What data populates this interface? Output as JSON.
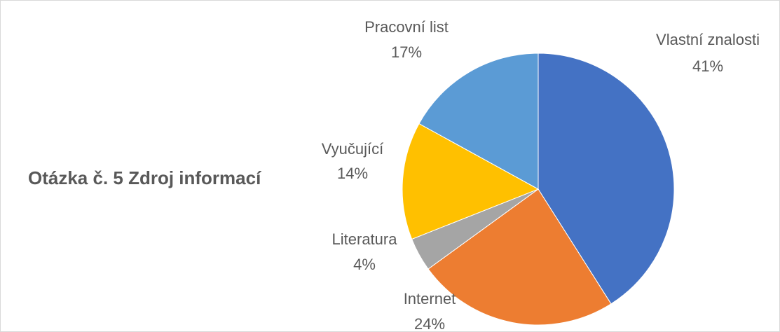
{
  "chart_data": {
    "type": "pie",
    "title": "Otázka č. 5 Zdroj informací",
    "categories": [
      "Vlastní znalosti",
      "Internet",
      "Literatura",
      "Vyučující",
      "Pracovní list"
    ],
    "values": [
      41,
      24,
      4,
      14,
      17
    ],
    "value_labels": [
      "41%",
      "24%",
      "4%",
      "14%",
      "17%"
    ],
    "colors": [
      "#4472c4",
      "#ed7d31",
      "#a5a5a5",
      "#ffc000",
      "#5b9bd5"
    ]
  }
}
